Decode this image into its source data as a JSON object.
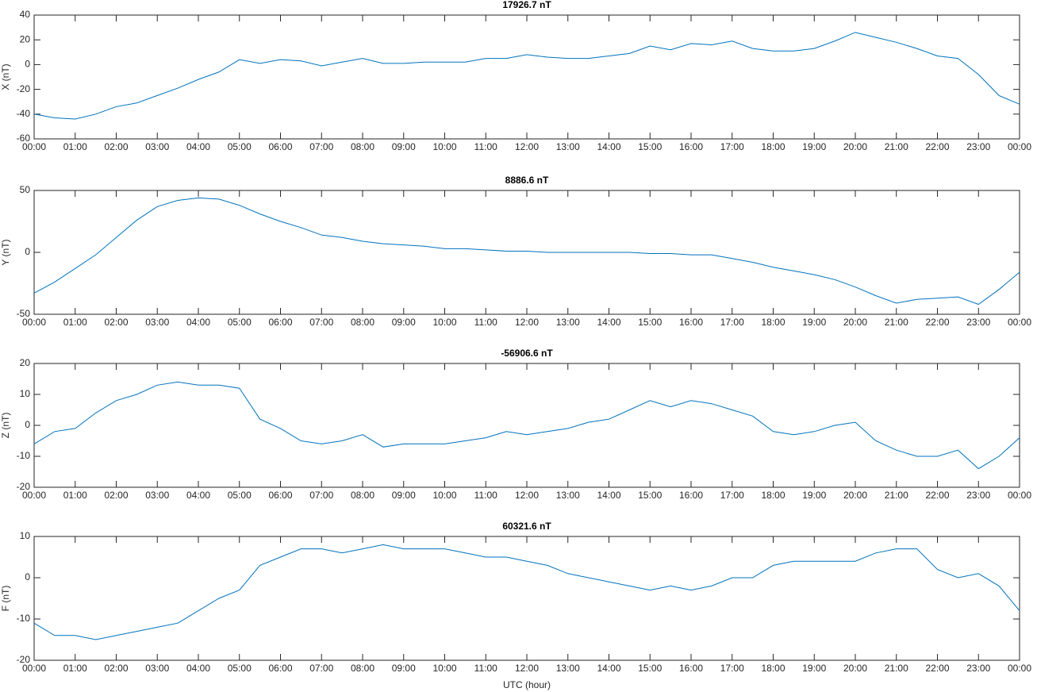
{
  "chart_data": [
    {
      "type": "line",
      "title": "17926.7 nT",
      "ylabel": "X (nT)",
      "x": [
        0,
        0.5,
        1,
        1.5,
        2,
        2.5,
        3,
        3.5,
        4,
        4.5,
        5,
        5.5,
        6,
        6.5,
        7,
        7.5,
        8,
        8.5,
        9,
        9.5,
        10,
        10.5,
        11,
        11.5,
        12,
        12.5,
        13,
        13.5,
        14,
        14.5,
        15,
        15.5,
        16,
        16.5,
        17,
        17.5,
        18,
        18.5,
        19,
        19.5,
        20,
        20.5,
        21,
        21.5,
        22,
        22.5,
        23,
        23.5,
        24
      ],
      "series": [
        {
          "color": "#0072bd",
          "values": [
            -40,
            -43,
            -44,
            -40,
            -34,
            -31,
            -25,
            -19,
            -12,
            -6,
            4,
            1,
            4,
            3,
            -1,
            2,
            5,
            1,
            1,
            2,
            2,
            2,
            5,
            5,
            8,
            6,
            5,
            5,
            7,
            9,
            15,
            12,
            17,
            16,
            19,
            13,
            11,
            11,
            13,
            19,
            26,
            22,
            18,
            13,
            7,
            5,
            -8,
            -25,
            -32
          ]
        }
      ],
      "xlim": [
        0,
        24
      ],
      "ylim": [
        -60,
        40
      ],
      "yticks": [
        -60,
        -40,
        -20,
        0,
        20,
        40
      ],
      "xticks": [
        {
          "value": 0,
          "label": "00:00"
        },
        {
          "value": 1,
          "label": "01:00"
        },
        {
          "value": 2,
          "label": "02:00"
        },
        {
          "value": 3,
          "label": "03:00"
        },
        {
          "value": 4,
          "label": "04:00"
        },
        {
          "value": 5,
          "label": "05:00"
        },
        {
          "value": 6,
          "label": "06:00"
        },
        {
          "value": 7,
          "label": "07:00"
        },
        {
          "value": 8,
          "label": "08:00"
        },
        {
          "value": 9,
          "label": "09:00"
        },
        {
          "value": 10,
          "label": "10:00"
        },
        {
          "value": 11,
          "label": "11:00"
        },
        {
          "value": 12,
          "label": "12:00"
        },
        {
          "value": 13,
          "label": "13:00"
        },
        {
          "value": 14,
          "label": "14:00"
        },
        {
          "value": 15,
          "label": "15:00"
        },
        {
          "value": 16,
          "label": "16:00"
        },
        {
          "value": 17,
          "label": "17:00"
        },
        {
          "value": 18,
          "label": "18:00"
        },
        {
          "value": 19,
          "label": "19:00"
        },
        {
          "value": 20,
          "label": "20:00"
        },
        {
          "value": 21,
          "label": "21:00"
        },
        {
          "value": 22,
          "label": "22:00"
        },
        {
          "value": 23,
          "label": "23:00"
        },
        {
          "value": 24,
          "label": "00:00"
        }
      ]
    },
    {
      "type": "line",
      "title": "8886.6 nT",
      "ylabel": "Y (nT)",
      "x": [
        0,
        0.5,
        1,
        1.5,
        2,
        2.5,
        3,
        3.5,
        4,
        4.5,
        5,
        5.5,
        6,
        6.5,
        7,
        7.5,
        8,
        8.5,
        9,
        9.5,
        10,
        10.5,
        11,
        11.5,
        12,
        12.5,
        13,
        13.5,
        14,
        14.5,
        15,
        15.5,
        16,
        16.5,
        17,
        17.5,
        18,
        18.5,
        19,
        19.5,
        20,
        20.5,
        21,
        21.5,
        22,
        22.5,
        23,
        23.5,
        24
      ],
      "series": [
        {
          "color": "#0072bd",
          "values": [
            -33,
            -24,
            -13,
            -2,
            12,
            26,
            37,
            42,
            44,
            43,
            38,
            31,
            25,
            20,
            14,
            12,
            9,
            7,
            6,
            5,
            3,
            3,
            2,
            1,
            1,
            0,
            0,
            0,
            0,
            0,
            -1,
            -1,
            -2,
            -2,
            -5,
            -8,
            -12,
            -15,
            -18,
            -22,
            -28,
            -35,
            -41,
            -38,
            -37,
            -36,
            -42,
            -30,
            -16
          ]
        }
      ],
      "xlim": [
        0,
        24
      ],
      "ylim": [
        -50,
        50
      ],
      "yticks": [
        -50,
        0,
        50
      ],
      "xticks": [
        {
          "value": 0,
          "label": "00:00"
        },
        {
          "value": 1,
          "label": "01:00"
        },
        {
          "value": 2,
          "label": "02:00"
        },
        {
          "value": 3,
          "label": "03:00"
        },
        {
          "value": 4,
          "label": "04:00"
        },
        {
          "value": 5,
          "label": "05:00"
        },
        {
          "value": 6,
          "label": "06:00"
        },
        {
          "value": 7,
          "label": "07:00"
        },
        {
          "value": 8,
          "label": "08:00"
        },
        {
          "value": 9,
          "label": "09:00"
        },
        {
          "value": 10,
          "label": "10:00"
        },
        {
          "value": 11,
          "label": "11:00"
        },
        {
          "value": 12,
          "label": "12:00"
        },
        {
          "value": 13,
          "label": "13:00"
        },
        {
          "value": 14,
          "label": "14:00"
        },
        {
          "value": 15,
          "label": "15:00"
        },
        {
          "value": 16,
          "label": "16:00"
        },
        {
          "value": 17,
          "label": "17:00"
        },
        {
          "value": 18,
          "label": "18:00"
        },
        {
          "value": 19,
          "label": "19:00"
        },
        {
          "value": 20,
          "label": "20:00"
        },
        {
          "value": 21,
          "label": "21:00"
        },
        {
          "value": 22,
          "label": "22:00"
        },
        {
          "value": 23,
          "label": "23:00"
        },
        {
          "value": 24,
          "label": "00:00"
        }
      ]
    },
    {
      "type": "line",
      "title": "-56906.6 nT",
      "ylabel": "Z (nT)",
      "x": [
        0,
        0.5,
        1,
        1.5,
        2,
        2.5,
        3,
        3.5,
        4,
        4.5,
        5,
        5.5,
        6,
        6.5,
        7,
        7.5,
        8,
        8.5,
        9,
        9.5,
        10,
        10.5,
        11,
        11.5,
        12,
        12.5,
        13,
        13.5,
        14,
        14.5,
        15,
        15.5,
        16,
        16.5,
        17,
        17.5,
        18,
        18.5,
        19,
        19.5,
        20,
        20.5,
        21,
        21.5,
        22,
        22.5,
        23,
        23.5,
        24
      ],
      "series": [
        {
          "color": "#0072bd",
          "values": [
            -6,
            -2,
            -1,
            4,
            8,
            10,
            13,
            14,
            13,
            13,
            12,
            2,
            -1,
            -5,
            -6,
            -5,
            -3,
            -7,
            -6,
            -6,
            -6,
            -5,
            -4,
            -2,
            -3,
            -2,
            -1,
            1,
            2,
            5,
            8,
            6,
            8,
            7,
            5,
            3,
            -2,
            -3,
            -2,
            0,
            1,
            -5,
            -8,
            -10,
            -10,
            -8,
            -14,
            -10,
            -4
          ]
        }
      ],
      "xlim": [
        0,
        24
      ],
      "ylim": [
        -20,
        20
      ],
      "yticks": [
        -20,
        -10,
        0,
        10,
        20
      ],
      "xticks": [
        {
          "value": 0,
          "label": "00:00"
        },
        {
          "value": 1,
          "label": "01:00"
        },
        {
          "value": 2,
          "label": "02:00"
        },
        {
          "value": 3,
          "label": "03:00"
        },
        {
          "value": 4,
          "label": "04:00"
        },
        {
          "value": 5,
          "label": "05:00"
        },
        {
          "value": 6,
          "label": "06:00"
        },
        {
          "value": 7,
          "label": "07:00"
        },
        {
          "value": 8,
          "label": "08:00"
        },
        {
          "value": 9,
          "label": "09:00"
        },
        {
          "value": 10,
          "label": "10:00"
        },
        {
          "value": 11,
          "label": "11:00"
        },
        {
          "value": 12,
          "label": "12:00"
        },
        {
          "value": 13,
          "label": "13:00"
        },
        {
          "value": 14,
          "label": "14:00"
        },
        {
          "value": 15,
          "label": "15:00"
        },
        {
          "value": 16,
          "label": "16:00"
        },
        {
          "value": 17,
          "label": "17:00"
        },
        {
          "value": 18,
          "label": "18:00"
        },
        {
          "value": 19,
          "label": "19:00"
        },
        {
          "value": 20,
          "label": "20:00"
        },
        {
          "value": 21,
          "label": "21:00"
        },
        {
          "value": 22,
          "label": "22:00"
        },
        {
          "value": 23,
          "label": "23:00"
        },
        {
          "value": 24,
          "label": "00:00"
        }
      ]
    },
    {
      "type": "line",
      "title": "60321.6 nT",
      "ylabel": "F (nT)",
      "xlabel": "UTC (hour)",
      "x": [
        0,
        0.5,
        1,
        1.5,
        2,
        2.5,
        3,
        3.5,
        4,
        4.5,
        5,
        5.5,
        6,
        6.5,
        7,
        7.5,
        8,
        8.5,
        9,
        9.5,
        10,
        10.5,
        11,
        11.5,
        12,
        12.5,
        13,
        13.5,
        14,
        14.5,
        15,
        15.5,
        16,
        16.5,
        17,
        17.5,
        18,
        18.5,
        19,
        19.5,
        20,
        20.5,
        21,
        21.5,
        22,
        22.5,
        23,
        23.5,
        24
      ],
      "series": [
        {
          "color": "#0072bd",
          "values": [
            -11,
            -14,
            -14,
            -15,
            -14,
            -13,
            -12,
            -11,
            -8,
            -5,
            -3,
            3,
            5,
            7,
            7,
            6,
            7,
            8,
            7,
            7,
            7,
            6,
            5,
            5,
            4,
            3,
            1,
            0,
            -1,
            -2,
            -3,
            -2,
            -3,
            -2,
            0,
            0,
            3,
            4,
            4,
            4,
            4,
            6,
            7,
            7,
            2,
            0,
            1,
            -2,
            -8
          ]
        }
      ],
      "xlim": [
        0,
        24
      ],
      "ylim": [
        -20,
        10
      ],
      "yticks": [
        -20,
        -10,
        0,
        10
      ],
      "xticks": [
        {
          "value": 0,
          "label": "00:00"
        },
        {
          "value": 1,
          "label": "01:00"
        },
        {
          "value": 2,
          "label": "02:00"
        },
        {
          "value": 3,
          "label": "03:00"
        },
        {
          "value": 4,
          "label": "04:00"
        },
        {
          "value": 5,
          "label": "05:00"
        },
        {
          "value": 6,
          "label": "06:00"
        },
        {
          "value": 7,
          "label": "07:00"
        },
        {
          "value": 8,
          "label": "08:00"
        },
        {
          "value": 9,
          "label": "09:00"
        },
        {
          "value": 10,
          "label": "10:00"
        },
        {
          "value": 11,
          "label": "11:00"
        },
        {
          "value": 12,
          "label": "12:00"
        },
        {
          "value": 13,
          "label": "13:00"
        },
        {
          "value": 14,
          "label": "14:00"
        },
        {
          "value": 15,
          "label": "15:00"
        },
        {
          "value": 16,
          "label": "16:00"
        },
        {
          "value": 17,
          "label": "17:00"
        },
        {
          "value": 18,
          "label": "18:00"
        },
        {
          "value": 19,
          "label": "19:00"
        },
        {
          "value": 20,
          "label": "20:00"
        },
        {
          "value": 21,
          "label": "21:00"
        },
        {
          "value": 22,
          "label": "22:00"
        },
        {
          "value": 23,
          "label": "23:00"
        },
        {
          "value": 24,
          "label": "00:00"
        }
      ]
    }
  ]
}
